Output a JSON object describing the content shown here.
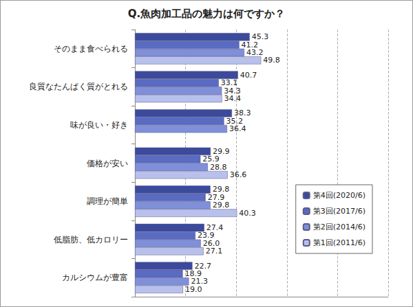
{
  "chart_data": {
    "type": "bar",
    "title": "Q.魚肉加工品の魅力は何ですか？",
    "orientation": "horizontal",
    "categories": [
      "そのまま食べられる",
      "良質なたんぱく質がとれる",
      "味が良い・好き",
      "価格が安い",
      "調理が簡単",
      "低脂肪、低カロリー",
      "カルシウムが豊富"
    ],
    "series": [
      {
        "name": "第4回(2020/6)",
        "color": "#3c4a9c",
        "values": [
          45.3,
          40.7,
          38.3,
          29.9,
          29.8,
          27.4,
          22.7
        ],
        "value_labels": [
          "45.3",
          "40.7",
          "38.3",
          "29.9",
          "29.8",
          "27.4",
          "22.7"
        ]
      },
      {
        "name": "第3回(2017/6)",
        "color": "#5a6bc2",
        "values": [
          41.2,
          33.1,
          35.2,
          25.9,
          27.9,
          23.9,
          18.9
        ],
        "value_labels": [
          "41.2",
          "33.1",
          "35.2",
          "25.9",
          "27.9",
          "23.9",
          "18.9"
        ]
      },
      {
        "name": "第2回(2014/6)",
        "color": "#8090d8",
        "values": [
          43.2,
          34.3,
          36.4,
          28.8,
          29.8,
          26.0,
          21.3
        ],
        "value_labels": [
          "43.2",
          "34.3",
          "36.4",
          "28.8",
          "29.8",
          "26.0",
          "21.3"
        ]
      },
      {
        "name": "第1回(2011/6)",
        "color": "#b8c0ec",
        "values": [
          49.8,
          34.4,
          null,
          36.6,
          40.3,
          27.1,
          19.0
        ],
        "value_labels": [
          "49.8",
          "34.4",
          null,
          "36.6",
          "40.3",
          "27.1",
          "19.0"
        ]
      }
    ],
    "xlim": [
      0,
      100
    ],
    "xticks": [
      0,
      20,
      40,
      60,
      80,
      100
    ],
    "tick_labels": "y",
    "grid": true,
    "legend": "right",
    "data_labels": true
  }
}
